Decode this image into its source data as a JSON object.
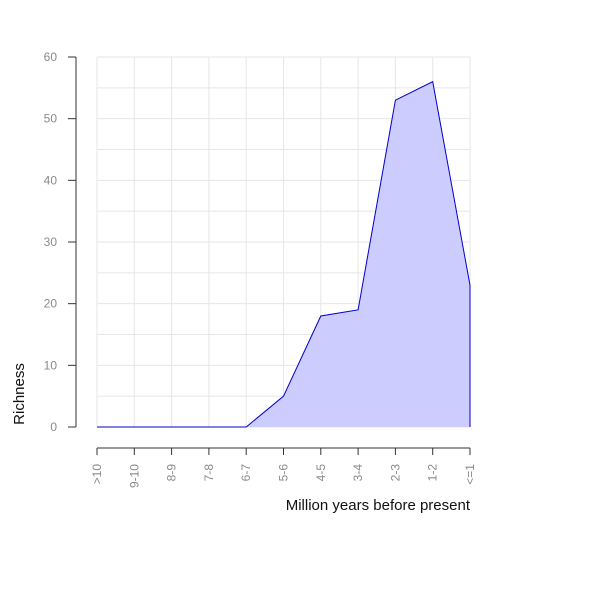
{
  "chart_data": {
    "type": "area",
    "categories": [
      ">10",
      "9-10",
      "8-9",
      "7-8",
      "6-7",
      "5-6",
      "4-5",
      "3-4",
      "2-3",
      "1-2",
      "<=1"
    ],
    "values": [
      0,
      0,
      0,
      0,
      0,
      5,
      18,
      19,
      53,
      56,
      23
    ],
    "xlabel": "Million years before present",
    "ylabel": "Richness",
    "ylim": [
      0,
      60
    ],
    "yticks": [
      0,
      10,
      20,
      30,
      40,
      50,
      60
    ],
    "grid": true,
    "fill_color": "#ccccff",
    "line_color": "#0000cc"
  }
}
